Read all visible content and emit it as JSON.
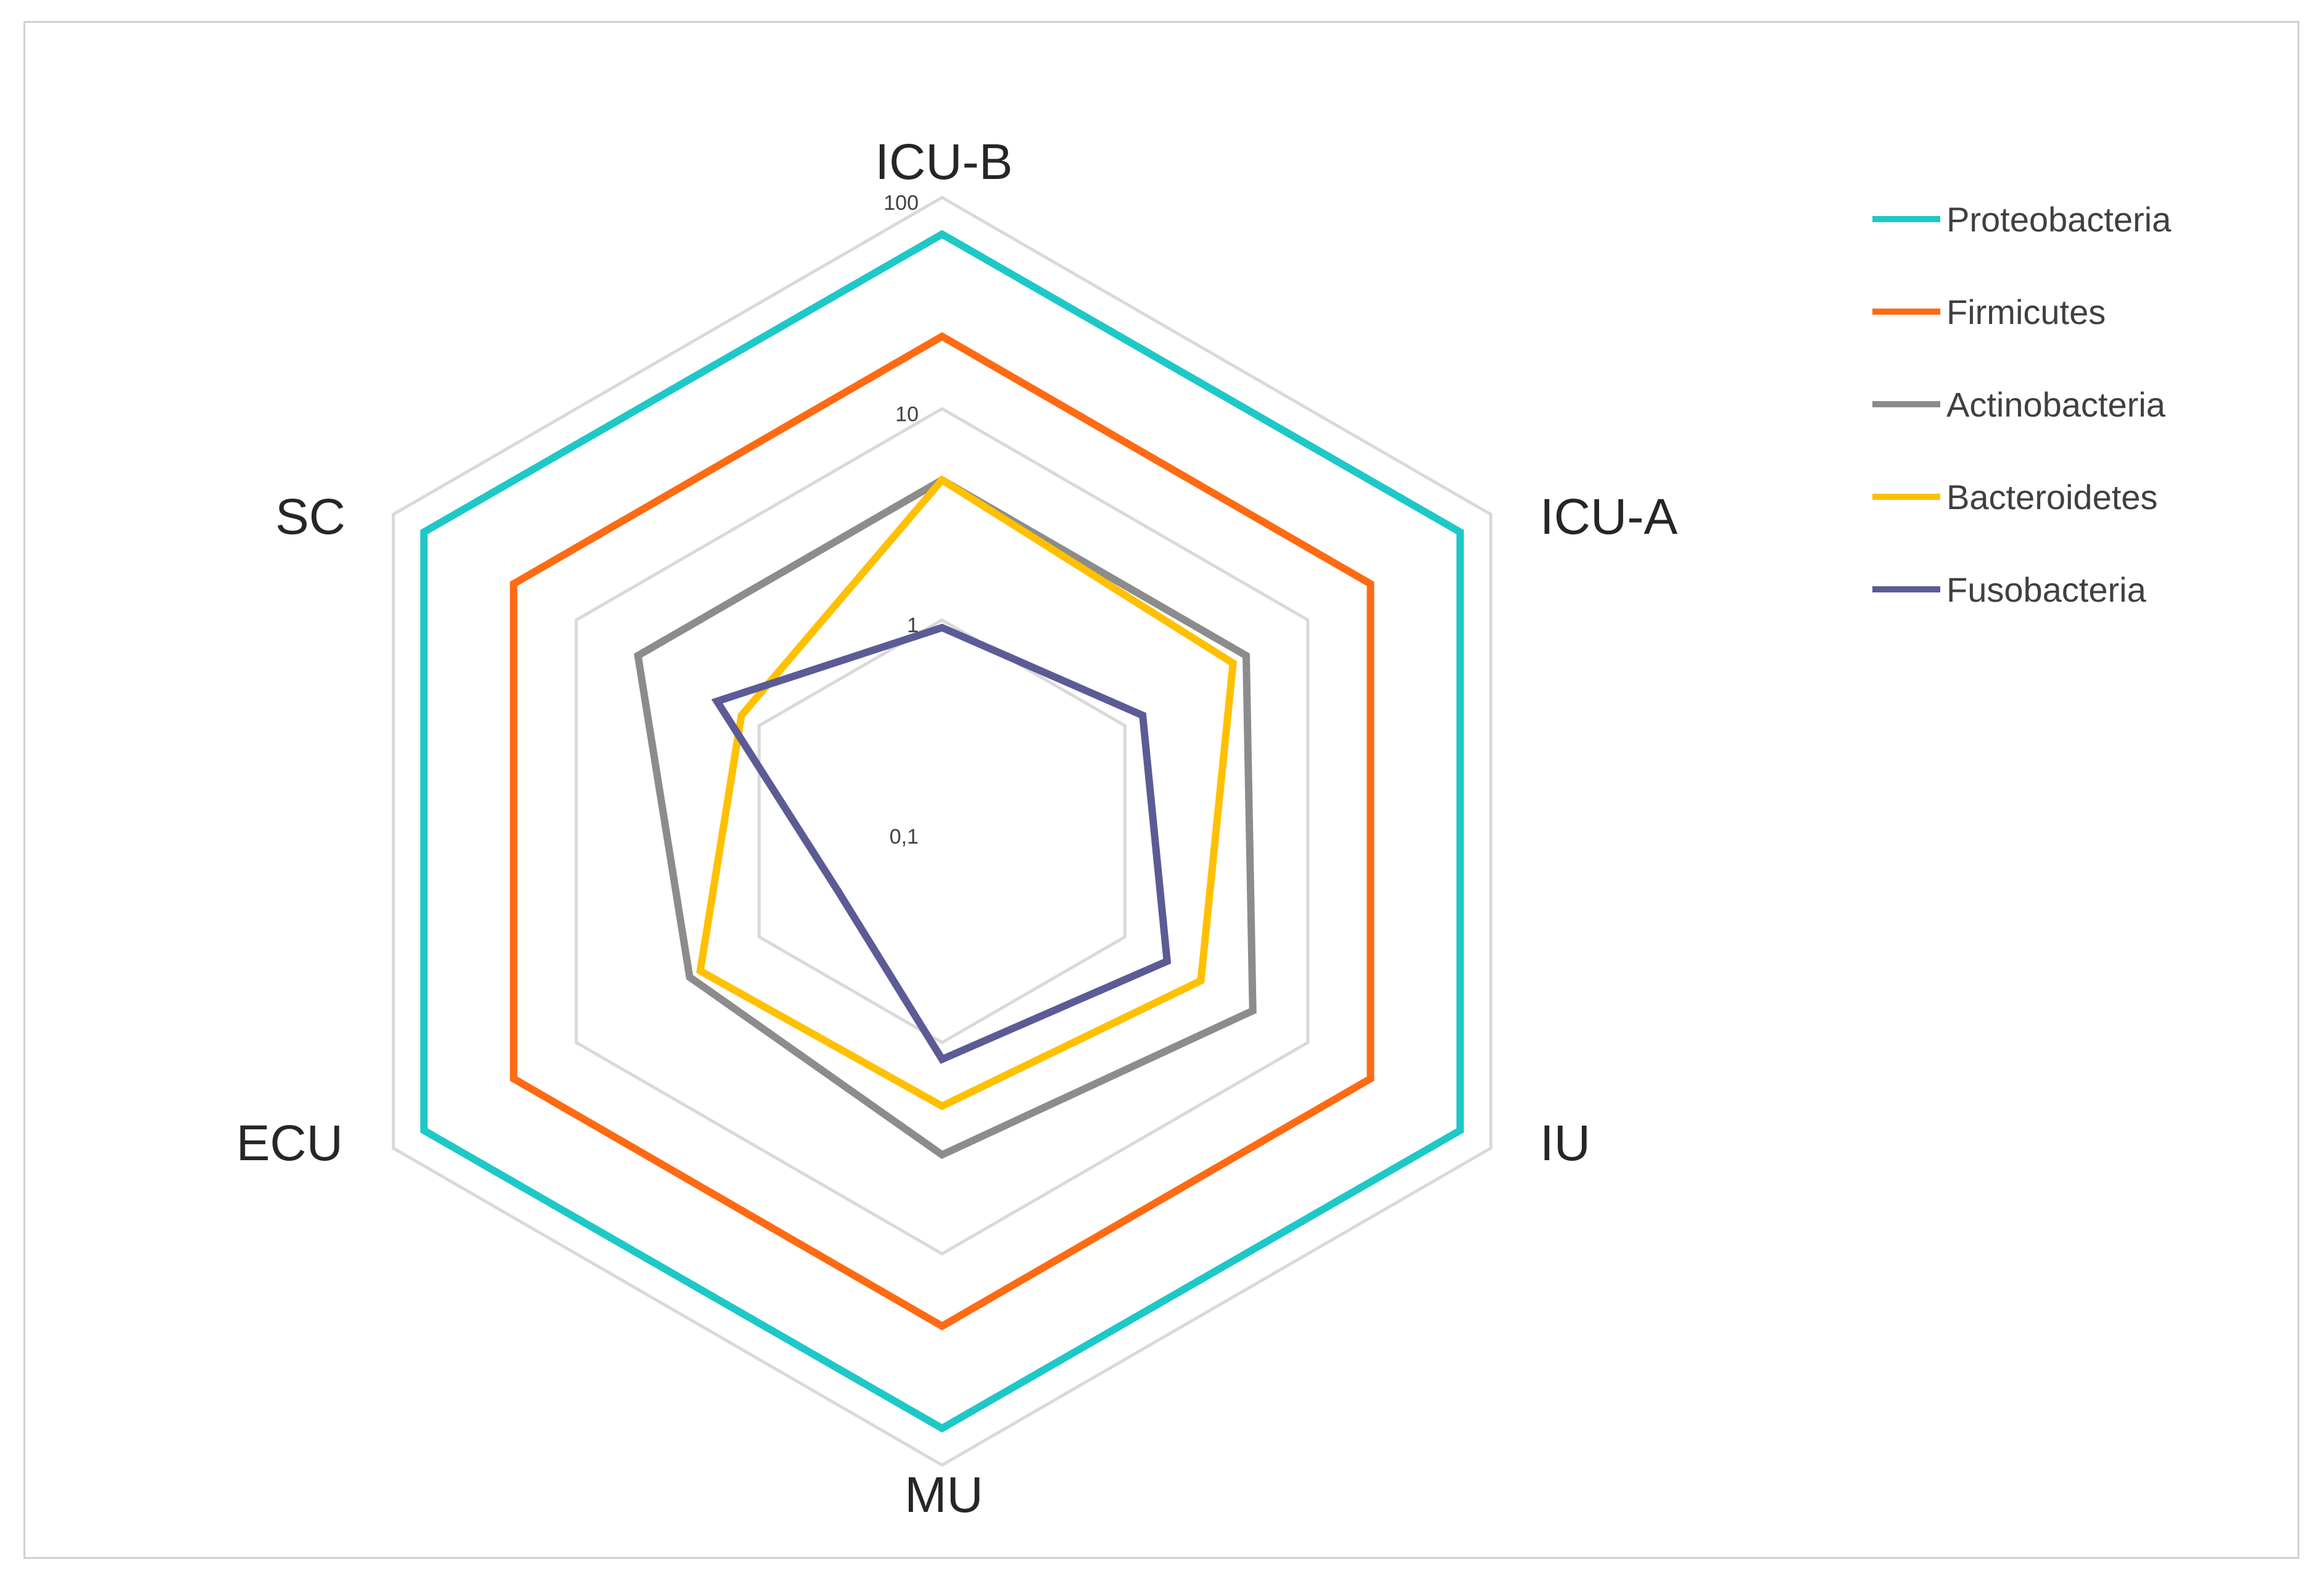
{
  "chart_data": {
    "type": "radar",
    "scale": "log",
    "rlim": [
      0.1,
      100
    ],
    "ticks": [
      {
        "value": 0.1,
        "label": "0,1"
      },
      {
        "value": 1,
        "label": "1"
      },
      {
        "value": 10,
        "label": "10"
      },
      {
        "value": 100,
        "label": "100"
      }
    ],
    "categories": [
      "ICU-B",
      "ICU-A",
      "IU",
      "MU",
      "ECU",
      "SC"
    ],
    "series": [
      {
        "name": "Proteobacteria",
        "color": "#1ec8c8",
        "values": [
          67,
          68,
          68,
          67,
          68,
          68
        ]
      },
      {
        "name": "Firmicutes",
        "color": "#ff6a13",
        "values": [
          22,
          22,
          22,
          22,
          22,
          22
        ]
      },
      {
        "name": "Actinobacteria",
        "color": "#8c8c8c",
        "values": [
          4.6,
          4.6,
          5.0,
          3.4,
          2.4,
          4.6
        ]
      },
      {
        "name": "Bacteroidetes",
        "color": "#ffc000",
        "values": [
          4.6,
          3.9,
          2.6,
          2.0,
          2.1,
          1.25
        ]
      },
      {
        "name": "Fusobacteria",
        "color": "#5b5b96",
        "values": [
          0.92,
          1.25,
          1.7,
          1.2,
          0.37,
          1.7
        ]
      }
    ],
    "grid": true,
    "legend": "right"
  }
}
